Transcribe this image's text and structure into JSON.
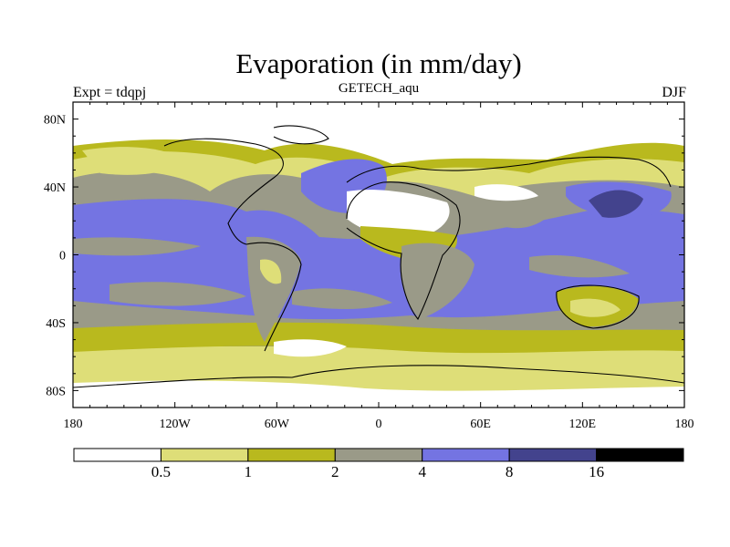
{
  "title": "Evaporation (in mm/day)",
  "subtitle": "GETECH_aqu",
  "left_label": "Expt = tdqpj",
  "right_label": "DJF",
  "map": {
    "lon_range": [
      -180,
      180
    ],
    "lat_range": [
      -90,
      90
    ],
    "lon_ticks": [
      {
        "value": -180,
        "label": "180"
      },
      {
        "value": -120,
        "label": "120W"
      },
      {
        "value": -60,
        "label": "60W"
      },
      {
        "value": 0,
        "label": "0"
      },
      {
        "value": 60,
        "label": "60E"
      },
      {
        "value": 120,
        "label": "120E"
      },
      {
        "value": 180,
        "label": "180"
      }
    ],
    "lat_ticks": [
      {
        "value": 80,
        "label": "80N"
      },
      {
        "value": 40,
        "label": "40N"
      },
      {
        "value": 0,
        "label": "0"
      },
      {
        "value": -40,
        "label": "40S"
      },
      {
        "value": -80,
        "label": "80S"
      }
    ]
  },
  "colorbar": {
    "colors": [
      "#ffffff",
      "#dede78",
      "#b9b91e",
      "#9a9a88",
      "#7474e2",
      "#43438d",
      "#000000"
    ],
    "boundaries": [
      {
        "value": "0.5",
        "label": "0.5"
      },
      {
        "value": "1",
        "label": "1"
      },
      {
        "value": "2",
        "label": "2"
      },
      {
        "value": "4",
        "label": "4"
      },
      {
        "value": "8",
        "label": "8"
      },
      {
        "value": "16",
        "label": "16"
      }
    ]
  }
}
